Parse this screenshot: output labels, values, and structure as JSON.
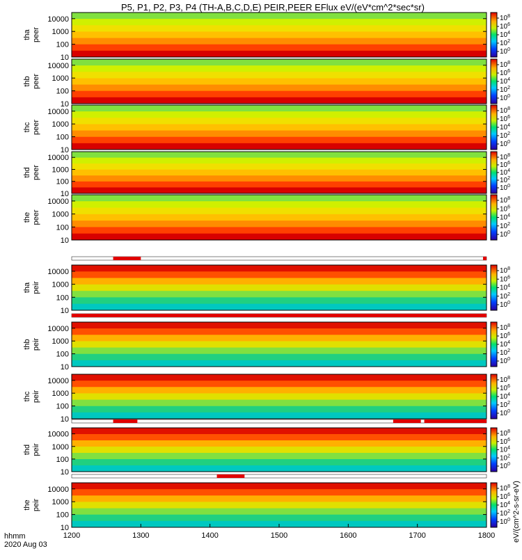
{
  "title": "P5, P1, P2, P3, P4 (TH-A,B,C,D,E) PEIR,PEER EFlux eV/(eV*cm^2*sec*sr)",
  "colorbar_label": "eV/(cm^2-s-sr-eV)",
  "footer": {
    "line1": "hhmm",
    "line2": "2020 Aug 03"
  },
  "chart_data": {
    "type": "heatmap",
    "x_axis": {
      "range": [
        1200,
        1800
      ],
      "ticks": [
        "1200",
        "1300",
        "1400",
        "1500",
        "1600",
        "1700",
        "1800"
      ]
    },
    "y_axis": {
      "scale": "log",
      "range": [
        10,
        30000
      ],
      "ticks": [
        "10",
        "100",
        "1000",
        "10000"
      ]
    },
    "colorbar_ticks": [
      "10^8",
      "10^6",
      "10^4",
      "10^2",
      "10^0"
    ],
    "panels": [
      {
        "probe": "tha",
        "species": "peer"
      },
      {
        "probe": "thb",
        "species": "peer"
      },
      {
        "probe": "thc",
        "species": "peer"
      },
      {
        "probe": "thd",
        "species": "peer"
      },
      {
        "probe": "the",
        "species": "peer"
      },
      {
        "probe": "tha",
        "species": "peir"
      },
      {
        "probe": "thb",
        "species": "peir"
      },
      {
        "probe": "thc",
        "species": "peir"
      },
      {
        "probe": "thd",
        "species": "peir"
      },
      {
        "probe": "the",
        "species": "peir"
      }
    ],
    "mode_bars": [
      {
        "above_panel": 5,
        "red_spans": [
          [
            1260,
            1300
          ],
          [
            1795,
            1800
          ]
        ]
      },
      {
        "above_panel": 6,
        "red_spans": [
          [
            1200,
            1800
          ]
        ]
      },
      {
        "above_panel": 8,
        "red_spans": [
          [
            1260,
            1295
          ],
          [
            1665,
            1705
          ],
          [
            1710,
            1800
          ]
        ]
      },
      {
        "above_panel": 9,
        "red_spans": [
          [
            1410,
            1450
          ]
        ]
      }
    ]
  }
}
